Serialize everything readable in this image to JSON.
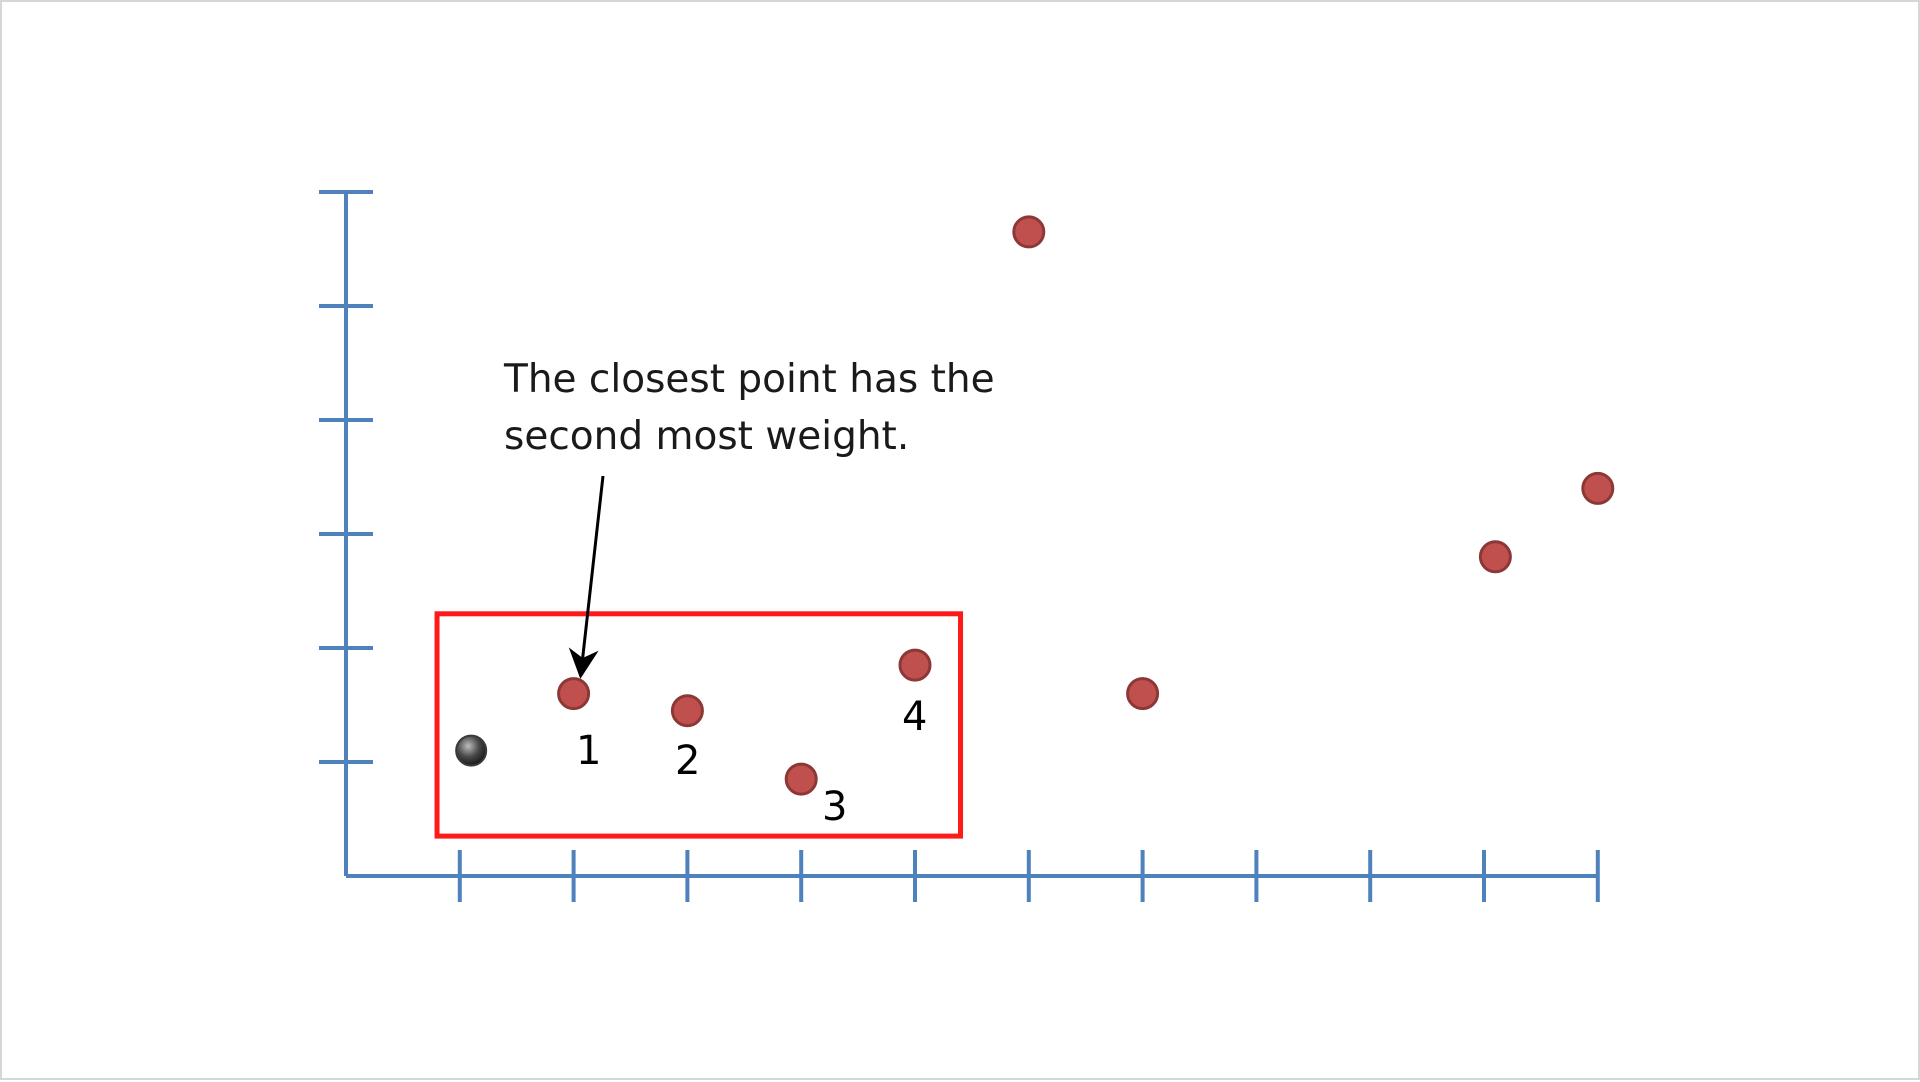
{
  "annotation": {
    "line1": "The closest point has the",
    "line2": "second most weight."
  },
  "labels": [
    "1",
    "2",
    "3",
    "4"
  ],
  "colors": {
    "axis": "#4f81bd",
    "data_point": "#c0504d",
    "data_point_stroke": "#8c3836",
    "query_point": "#3a3a3a",
    "highlight_box": "#ff1a1a",
    "arrow": "#000000",
    "text": "#1a1a1a"
  },
  "scene": {
    "x_ticks": 11,
    "y_ticks": 6,
    "query_point": {
      "x": 1.1,
      "y": 1.1
    },
    "points": [
      {
        "x": 2.0,
        "y": 1.6,
        "label": "1"
      },
      {
        "x": 3.0,
        "y": 1.45,
        "label": "2"
      },
      {
        "x": 4.0,
        "y": 0.85,
        "label": "3"
      },
      {
        "x": 5.0,
        "y": 1.85,
        "label": "4"
      },
      {
        "x": 6.0,
        "y": 5.65
      },
      {
        "x": 7.0,
        "y": 1.6
      },
      {
        "x": 10.1,
        "y": 2.8
      },
      {
        "x": 11.0,
        "y": 3.4
      }
    ],
    "highlight": {
      "x_min": 0.8,
      "x_max": 5.4,
      "y_min": 0.35,
      "y_max": 2.3
    }
  }
}
